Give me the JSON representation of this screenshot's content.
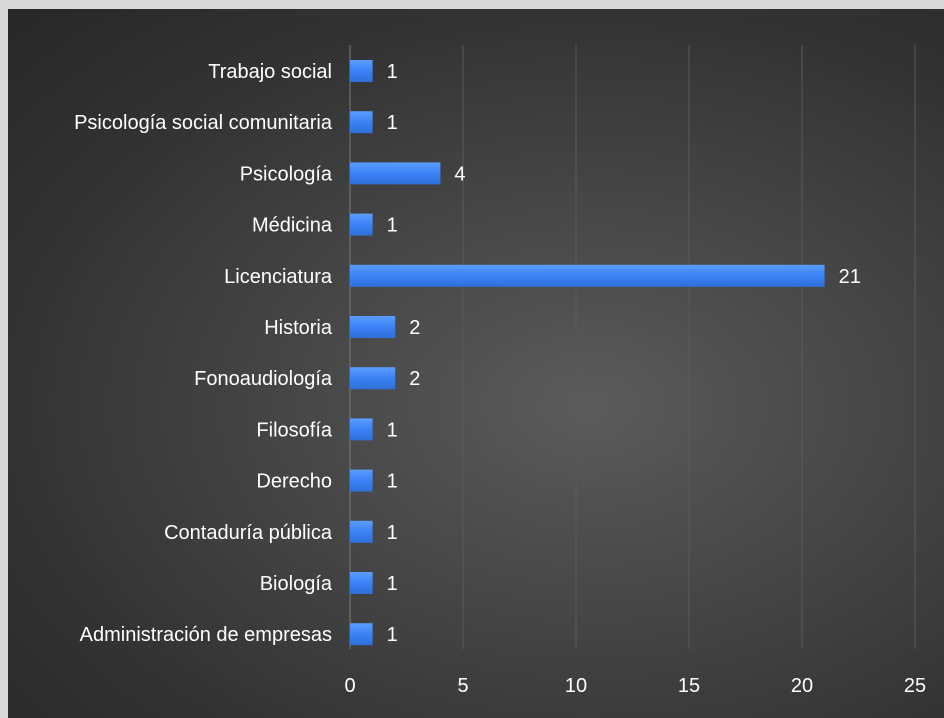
{
  "chart_data": {
    "type": "bar",
    "orientation": "horizontal",
    "categories": [
      "Trabajo social",
      "Psicología social comunitaria",
      "Psicología",
      "Médicina",
      "Licenciatura",
      "Historia",
      "Fonoaudiología",
      "Filosofía",
      "Derecho",
      "Contaduría pública",
      "Biología",
      "Administración de empresas"
    ],
    "values": [
      1,
      1,
      4,
      1,
      21,
      2,
      2,
      1,
      1,
      1,
      1,
      1
    ],
    "data_labels": [
      "1",
      "1",
      "4",
      "1",
      "21",
      "2",
      "2",
      "1",
      "1",
      "1",
      "1",
      "1"
    ],
    "xticks": [
      "0",
      "5",
      "10",
      "15",
      "20",
      "25"
    ],
    "xlim": [
      0,
      25
    ],
    "title": "",
    "xlabel": "",
    "ylabel": "",
    "grid": "vertical",
    "legend": "none",
    "colors": {
      "bar": "#3b82f6",
      "bar_top": "#5b9cff",
      "grid": "#5a5a5a",
      "text": "#ffffff"
    }
  }
}
